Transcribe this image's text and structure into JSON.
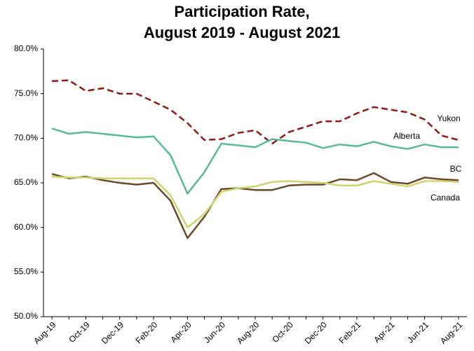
{
  "chart_data": {
    "type": "line",
    "title": "Participation Rate,",
    "subtitle": "August 2019 - August 2021",
    "categories": [
      "Aug-19",
      null,
      "Oct-19",
      null,
      "Dec-19",
      null,
      "Feb-20",
      null,
      "Apr-20",
      null,
      "Jun-20",
      null,
      "Aug-20",
      null,
      "Oct-20",
      null,
      "Dec-20",
      null,
      "Feb-21",
      null,
      "Apr-21",
      null,
      "Jun-21",
      null,
      "Aug-21"
    ],
    "ylim": [
      50,
      80
    ],
    "yticks": [
      {
        "value": 50,
        "label": "50.0%"
      },
      {
        "value": 55,
        "label": "55.0%"
      },
      {
        "value": 60,
        "label": "60.0%"
      },
      {
        "value": 65,
        "label": "65.0%"
      },
      {
        "value": 70,
        "label": "70.0%"
      },
      {
        "value": 75,
        "label": "75.0%"
      },
      {
        "value": 80,
        "label": "80.0%"
      }
    ],
    "grid": false,
    "series": [
      {
        "name": "Yukon",
        "color": "#8b1a1a",
        "dashed": true,
        "values": [
          76.4,
          76.5,
          75.3,
          75.6,
          75.0,
          75.0,
          74.1,
          73.2,
          71.7,
          69.8,
          69.9,
          70.6,
          70.9,
          69.4,
          70.7,
          71.3,
          71.9,
          71.9,
          72.8,
          73.5,
          73.2,
          72.9,
          72.1,
          70.3,
          69.8
        ]
      },
      {
        "name": "Alberta",
        "color": "#5bb89a",
        "dashed": false,
        "values": [
          71.1,
          70.5,
          70.7,
          70.5,
          70.3,
          70.1,
          70.2,
          68.1,
          63.8,
          66.2,
          69.4,
          69.2,
          69.0,
          69.9,
          69.7,
          69.5,
          68.9,
          69.3,
          69.1,
          69.6,
          69.1,
          68.8,
          69.3,
          69.0,
          69.0
        ]
      },
      {
        "name": "BC",
        "color": "#6b4a2b",
        "dashed": false,
        "values": [
          66.0,
          65.5,
          65.7,
          65.3,
          65.0,
          64.8,
          65.0,
          63.0,
          58.8,
          61.2,
          64.3,
          64.4,
          64.2,
          64.2,
          64.7,
          64.8,
          64.8,
          65.4,
          65.3,
          66.1,
          65.1,
          64.9,
          65.6,
          65.4,
          65.3
        ]
      },
      {
        "name": "Canada",
        "color": "#cdd66e",
        "dashed": false,
        "values": [
          65.7,
          65.6,
          65.6,
          65.5,
          65.5,
          65.5,
          65.5,
          63.6,
          60.0,
          61.5,
          64.0,
          64.4,
          64.6,
          65.1,
          65.2,
          65.1,
          65.0,
          64.7,
          64.7,
          65.2,
          64.9,
          64.6,
          65.2,
          65.2,
          65.1
        ]
      }
    ]
  }
}
